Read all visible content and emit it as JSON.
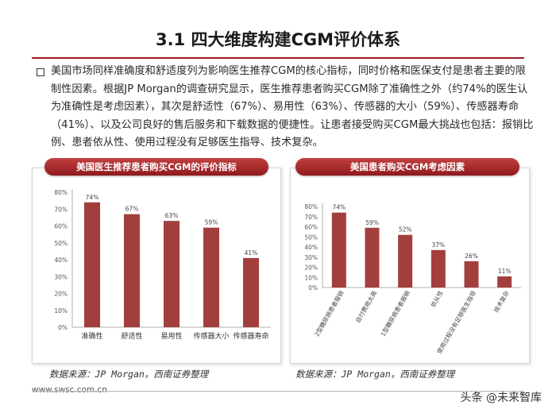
{
  "slide": {
    "title": "3.1 四大维度构建CGM评价体系",
    "body": "美国市场同样准确度和舒适度列为影响医生推荐CGM的核心指标，同时价格和医保支付是患者主要的限制性因素。根据JP Morgan的调查研究显示，医生推荐患者购买CGM除了准确性之外（约74%的医生认为准确性是考虑因素），其次是舒适性（67%）、易用性（63%）、传感器的大小（59%）、传感器寿命（41%）、以及公司良好的售后服务和下载数据的便捷性。让患者接受购买CGM最大挑战也包括：报销比例、患者依从性、使用过程没有足够医生指导、技术复杂。"
  },
  "footer": {
    "url": "www.swsc.com.cn",
    "watermark": "头条 @未来智库"
  },
  "colors": {
    "bar": "#a23f3d",
    "accent": "#a01e25"
  },
  "chart_data": [
    {
      "type": "bar",
      "title": "美国医生推荐患者购买CGM的评价指标",
      "categories": [
        "准确性",
        "舒适性",
        "易用性",
        "传感器大小",
        "传感器寿命"
      ],
      "values": [
        74,
        67,
        63,
        59,
        41
      ],
      "value_labels": [
        "74%",
        "67%",
        "63%",
        "59%",
        "41%"
      ],
      "yticks": [
        "0%",
        "10%",
        "20%",
        "30%",
        "40%",
        "50%",
        "60%",
        "70%",
        "80%"
      ],
      "ylim": [
        0,
        80
      ],
      "source": "数据来源：JP Morgan，西南证券整理"
    },
    {
      "type": "bar",
      "title": "美国患者购买CGM考虑因素",
      "categories": [
        "2型糖尿病患者报销",
        "自付费用太高",
        "1型糖尿病患者报销",
        "依从性",
        "使用过程没有足够医生指导",
        "技术复杂"
      ],
      "values": [
        74,
        59,
        52,
        37,
        26,
        11
      ],
      "value_labels": [
        "74%",
        "59%",
        "52%",
        "37%",
        "26%",
        "11%"
      ],
      "yticks": [
        "0%",
        "10%",
        "20%",
        "30%",
        "40%",
        "50%",
        "60%",
        "70%",
        "80%"
      ],
      "ylim": [
        0,
        80
      ],
      "source": "数据来源：JP Morgan，西南证券整理"
    }
  ]
}
